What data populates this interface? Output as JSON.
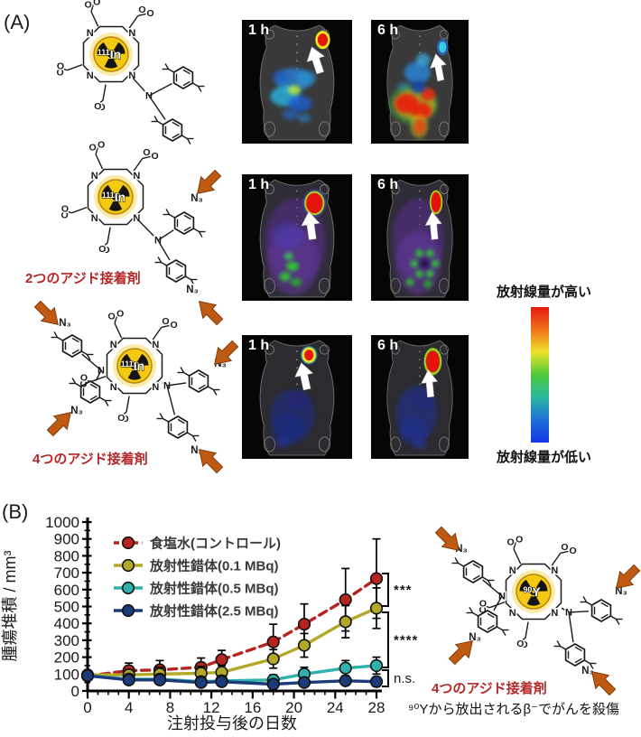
{
  "colors": {
    "red_text": "#b52828",
    "arrow_orange": "#c05a12",
    "arrow_orange_dark": "#7a3a08",
    "radioactive_yellow": "#f3c912",
    "radioactive_glow": "#f8dc6e"
  },
  "panel_a": {
    "label": "(A)",
    "chemistry": {
      "nitrogen_label": "N",
      "oxygen_label": "O",
      "azide_label": "N₃",
      "structures": [
        {
          "isotope_mass": "111",
          "isotope_symbol": "In",
          "caption": ""
        },
        {
          "isotope_mass": "111",
          "isotope_symbol": "In",
          "caption": "2つのアジド接着剤"
        },
        {
          "isotope_mass": "111",
          "isotope_symbol": "In",
          "caption": "4つのアジド接着剤"
        }
      ]
    },
    "scans": {
      "rows": [
        {
          "images": [
            {
              "time_label": "1 h"
            },
            {
              "time_label": "6 h"
            }
          ]
        },
        {
          "images": [
            {
              "time_label": "1 h"
            },
            {
              "time_label": "6 h"
            }
          ]
        },
        {
          "images": [
            {
              "time_label": "1 h"
            },
            {
              "time_label": "6 h"
            }
          ]
        }
      ]
    },
    "colorbar": {
      "high_label": "放射線量が高い",
      "low_label": "放射線量が低い",
      "gradient": [
        "#e3190f",
        "#f0721b",
        "#ede32a",
        "#4ec93c",
        "#2bb7a0",
        "#1f6fd6",
        "#1436ea"
      ]
    }
  },
  "panel_b": {
    "label": "(B)",
    "chart_data": {
      "type": "line",
      "x": [
        0,
        4,
        7,
        11,
        13,
        18,
        21,
        25,
        28
      ],
      "xticks": [
        0,
        4,
        8,
        12,
        16,
        20,
        24,
        28
      ],
      "xlabel": "注射投与後の日数",
      "ylabel": "腫瘍堆積 / mm³",
      "ylim": [
        0,
        1000
      ],
      "ytick_step": 100,
      "grid": false,
      "legend_position": "top-left",
      "series": [
        {
          "name": "食塩水(コントロール)",
          "color": "#b62420",
          "dashed": true,
          "values": [
            90,
            120,
            125,
            140,
            185,
            290,
            395,
            540,
            665
          ],
          "errors": [
            15,
            45,
            55,
            55,
            55,
            105,
            120,
            185,
            235
          ]
        },
        {
          "name": "放射性錯体(0.1 MBq)",
          "color": "#b2a826",
          "dashed": false,
          "values": [
            95,
            95,
            100,
            105,
            110,
            190,
            270,
            410,
            490
          ],
          "errors": [
            10,
            30,
            40,
            40,
            40,
            55,
            70,
            95,
            120
          ]
        },
        {
          "name": "放射性錯体(0.5 MBq)",
          "color": "#2fb1ac",
          "dashed": false,
          "values": [
            90,
            70,
            70,
            55,
            60,
            65,
            100,
            135,
            150
          ],
          "errors": [
            10,
            20,
            20,
            15,
            15,
            30,
            40,
            45,
            50
          ]
        },
        {
          "name": "放射性錯体(2.5 MBq)",
          "color": "#1c3b79",
          "dashed": false,
          "values": [
            90,
            65,
            65,
            50,
            55,
            40,
            50,
            60,
            55
          ],
          "errors": [
            10,
            20,
            20,
            15,
            15,
            12,
            18,
            22,
            28
          ]
        }
      ],
      "significance": [
        {
          "label": "***"
        },
        {
          "label": "****"
        },
        {
          "label": "n.s."
        }
      ]
    },
    "structure": {
      "isotope_mass": "90",
      "isotope_symbol": "Y",
      "caption": "4つのアジド接着剤",
      "subcaption": "⁹⁰Yから放出されるβ⁻でがんを殺傷"
    }
  }
}
